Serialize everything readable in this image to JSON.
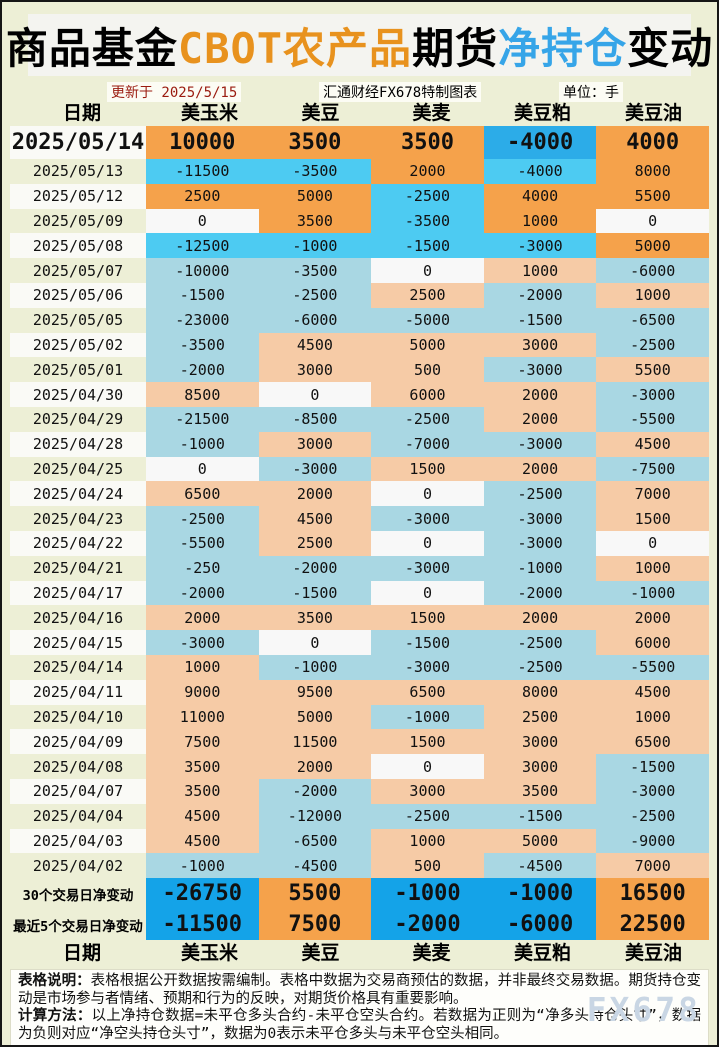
{
  "title": {
    "segments": [
      {
        "text": "商品基金",
        "color": "#000000"
      },
      {
        "text": "CBOT农产品",
        "color": "#E8921E"
      },
      {
        "text": "期货",
        "color": "#000000"
      },
      {
        "text": "净持仓",
        "color": "#36A5E8"
      },
      {
        "text": "变动",
        "color": "#000000"
      }
    ]
  },
  "meta": {
    "updated": "更新于 2025/5/15",
    "source": "汇通财经FX678特制图表",
    "unit": "单位：手"
  },
  "chart_data": {
    "type": "table",
    "title": "商品基金CBOT农产品期货净持仓变动",
    "unit": "手",
    "columns": [
      "日期",
      "美玉米",
      "美豆",
      "美麦",
      "美豆粕",
      "美豆油"
    ],
    "rows": [
      {
        "date": "2025/05/14",
        "values": [
          10000,
          3500,
          3500,
          -4000,
          4000
        ]
      },
      {
        "date": "2025/05/13",
        "values": [
          -11500,
          -3500,
          2000,
          -4000,
          8000
        ]
      },
      {
        "date": "2025/05/12",
        "values": [
          2500,
          5000,
          -2500,
          4000,
          5500
        ]
      },
      {
        "date": "2025/05/09",
        "values": [
          0,
          3500,
          -3500,
          1000,
          0
        ]
      },
      {
        "date": "2025/05/08",
        "values": [
          -12500,
          -1000,
          -1500,
          -3000,
          5000
        ]
      },
      {
        "date": "2025/05/07",
        "values": [
          -10000,
          -3500,
          0,
          1000,
          -6000
        ]
      },
      {
        "date": "2025/05/06",
        "values": [
          -1500,
          -2500,
          2500,
          -2000,
          1000
        ]
      },
      {
        "date": "2025/05/05",
        "values": [
          -23000,
          -6000,
          -5000,
          -1500,
          -6500
        ]
      },
      {
        "date": "2025/05/02",
        "values": [
          -3500,
          4500,
          5000,
          3000,
          -2500
        ]
      },
      {
        "date": "2025/05/01",
        "values": [
          -2000,
          3000,
          500,
          -3000,
          5500
        ]
      },
      {
        "date": "2025/04/30",
        "values": [
          8500,
          0,
          6000,
          2000,
          -3000
        ]
      },
      {
        "date": "2025/04/29",
        "values": [
          -21500,
          -8500,
          -2500,
          2000,
          -5500
        ]
      },
      {
        "date": "2025/04/28",
        "values": [
          -1000,
          3000,
          -7000,
          -3000,
          4500
        ]
      },
      {
        "date": "2025/04/25",
        "values": [
          0,
          -3000,
          1500,
          2000,
          -7500
        ]
      },
      {
        "date": "2025/04/24",
        "values": [
          6500,
          2000,
          0,
          -2500,
          7000
        ]
      },
      {
        "date": "2025/04/23",
        "values": [
          -2500,
          4500,
          -3000,
          -3000,
          1500
        ]
      },
      {
        "date": "2025/04/22",
        "values": [
          -5500,
          2500,
          0,
          -3000,
          0
        ]
      },
      {
        "date": "2025/04/21",
        "values": [
          -250,
          -2000,
          -3000,
          -1000,
          1000
        ]
      },
      {
        "date": "2025/04/17",
        "values": [
          -2000,
          -1500,
          0,
          -2000,
          -1000
        ]
      },
      {
        "date": "2025/04/16",
        "values": [
          2000,
          3500,
          1500,
          2000,
          2000
        ]
      },
      {
        "date": "2025/04/15",
        "values": [
          -3000,
          0,
          -1500,
          -2500,
          6000
        ]
      },
      {
        "date": "2025/04/14",
        "values": [
          1000,
          -1000,
          -3000,
          -2500,
          -5500
        ]
      },
      {
        "date": "2025/04/11",
        "values": [
          9000,
          9500,
          6500,
          8000,
          4500
        ]
      },
      {
        "date": "2025/04/10",
        "values": [
          11000,
          5000,
          -1000,
          2500,
          1000
        ]
      },
      {
        "date": "2025/04/09",
        "values": [
          7500,
          11500,
          1500,
          3000,
          6500
        ]
      },
      {
        "date": "2025/04/08",
        "values": [
          3500,
          2000,
          0,
          3000,
          -1500
        ]
      },
      {
        "date": "2025/04/07",
        "values": [
          3500,
          -2000,
          3000,
          3500,
          -3000
        ]
      },
      {
        "date": "2025/04/04",
        "values": [
          4500,
          -12000,
          -2500,
          -1500,
          -2500
        ]
      },
      {
        "date": "2025/04/03",
        "values": [
          4500,
          -6500,
          1000,
          5000,
          -9000
        ]
      },
      {
        "date": "2025/04/02",
        "values": [
          -1000,
          -4500,
          500,
          -4500,
          7000
        ]
      }
    ],
    "summary_rows": [
      {
        "label": "30个交易日净变动",
        "values": [
          -26750,
          5500,
          -1000,
          -1000,
          16500
        ]
      },
      {
        "label": "最近5个交易日净变动",
        "values": [
          -11500,
          7500,
          -2000,
          -6000,
          22500
        ]
      }
    ]
  },
  "notes": {
    "line1_label": "表格说明：",
    "line1_text": "表格根据公开数据按需编制。表格中数据为交易商预估的数据，并非最终交易数据。期货持仓变动是市场参与者情绪、预期和行为的反映，对期货价格具有重要影响。",
    "line2_label": "计算方法：",
    "line2_text": "以上净持仓数据=未平仓多头合约-未平仓空头合约。若数据为正则为“净多头持仓头寸”，数据为负则对应“净空头持仓头寸”，数据为0表示未平仓多头与未平仓空头相同。"
  },
  "watermark": "FX678",
  "colors": {
    "background": "#EDEFD6",
    "update_red": "#9A1B0F",
    "positive_recent": "#F5A24B",
    "negative_latest": "#2CACE8",
    "negative_recent": "#4DCBF2",
    "positive_older": "#F6CBA6",
    "negative_older": "#A9D7E3",
    "zero": "#F8F8F8",
    "positive_summary": "#F5A24B",
    "negative_summary": "#14A3E8"
  }
}
